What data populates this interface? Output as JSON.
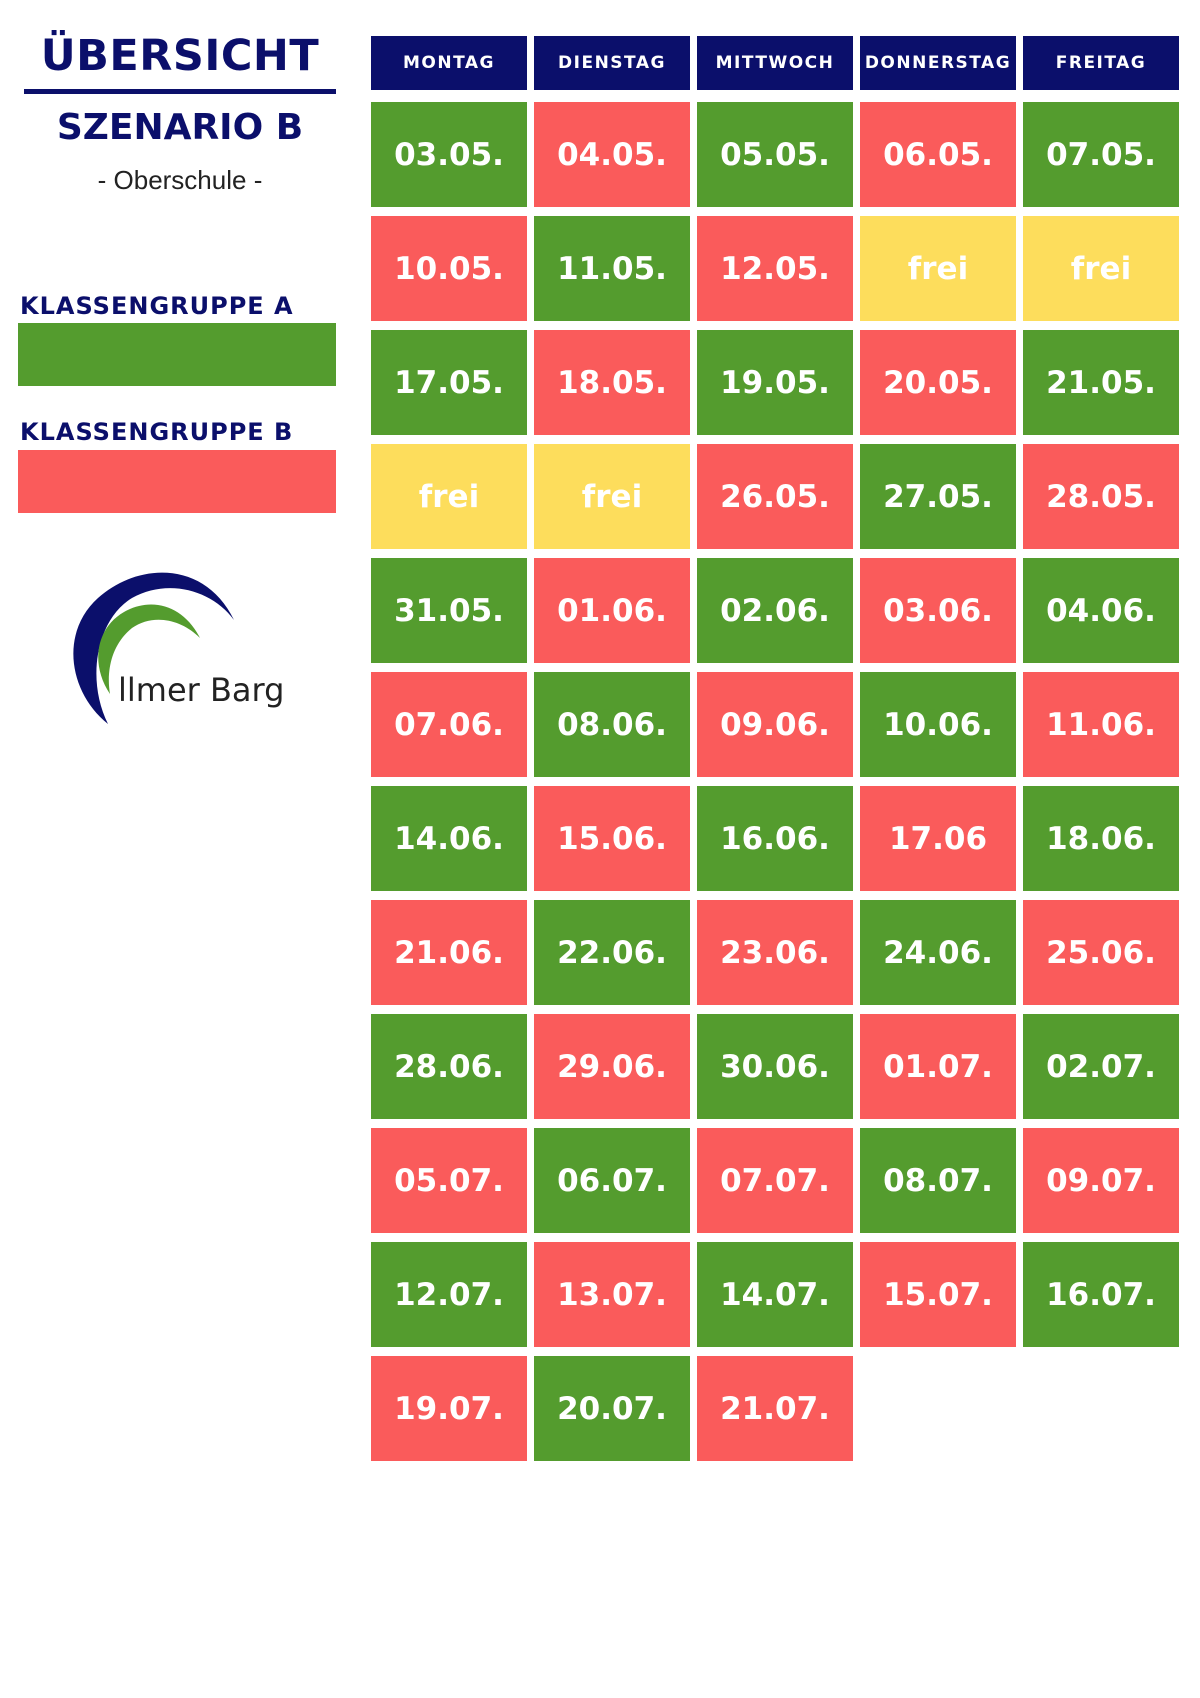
{
  "header": {
    "title": "ÜBERSICHT",
    "subtitle": "SZENARIO B",
    "school_type": "- Oberschule -"
  },
  "legend": [
    {
      "label": "KLASSENGRUPPE A",
      "color": "#549c2e"
    },
    {
      "label": "KLASSENGRUPPE B",
      "color": "#fa5b5b"
    }
  ],
  "logo": {
    "text": "llmer Barg",
    "colors": [
      "#0b0f6b",
      "#549c2e"
    ]
  },
  "colors": {
    "group_a": "#549c2e",
    "group_b": "#fa5b5b",
    "free": "#fddd5c",
    "header": "#0b0f6b"
  },
  "schedule": {
    "days": [
      "MONTAG",
      "DIENSTAG",
      "MITTWOCH",
      "DONNERSTAG",
      "FREITAG"
    ],
    "weeks": [
      [
        {
          "text": "03.05.",
          "group": "A"
        },
        {
          "text": "04.05.",
          "group": "B"
        },
        {
          "text": "05.05.",
          "group": "A"
        },
        {
          "text": "06.05.",
          "group": "B"
        },
        {
          "text": "07.05.",
          "group": "A"
        }
      ],
      [
        {
          "text": "10.05.",
          "group": "B"
        },
        {
          "text": "11.05.",
          "group": "A"
        },
        {
          "text": "12.05.",
          "group": "B"
        },
        {
          "text": "frei",
          "group": "free"
        },
        {
          "text": "frei",
          "group": "free"
        }
      ],
      [
        {
          "text": "17.05.",
          "group": "A"
        },
        {
          "text": "18.05.",
          "group": "B"
        },
        {
          "text": "19.05.",
          "group": "A"
        },
        {
          "text": "20.05.",
          "group": "B"
        },
        {
          "text": "21.05.",
          "group": "A"
        }
      ],
      [
        {
          "text": "frei",
          "group": "free"
        },
        {
          "text": "frei",
          "group": "free"
        },
        {
          "text": "26.05.",
          "group": "B"
        },
        {
          "text": "27.05.",
          "group": "A"
        },
        {
          "text": "28.05.",
          "group": "B"
        }
      ],
      [
        {
          "text": "31.05.",
          "group": "A"
        },
        {
          "text": "01.06.",
          "group": "B"
        },
        {
          "text": "02.06.",
          "group": "A"
        },
        {
          "text": "03.06.",
          "group": "B"
        },
        {
          "text": "04.06.",
          "group": "A"
        }
      ],
      [
        {
          "text": "07.06.",
          "group": "B"
        },
        {
          "text": "08.06.",
          "group": "A"
        },
        {
          "text": "09.06.",
          "group": "B"
        },
        {
          "text": "10.06.",
          "group": "A"
        },
        {
          "text": "11.06.",
          "group": "B"
        }
      ],
      [
        {
          "text": "14.06.",
          "group": "A"
        },
        {
          "text": "15.06.",
          "group": "B"
        },
        {
          "text": "16.06.",
          "group": "A"
        },
        {
          "text": "17.06",
          "group": "B"
        },
        {
          "text": "18.06.",
          "group": "A"
        }
      ],
      [
        {
          "text": "21.06.",
          "group": "B"
        },
        {
          "text": "22.06.",
          "group": "A"
        },
        {
          "text": "23.06.",
          "group": "B"
        },
        {
          "text": "24.06.",
          "group": "A"
        },
        {
          "text": "25.06.",
          "group": "B"
        }
      ],
      [
        {
          "text": "28.06.",
          "group": "A"
        },
        {
          "text": "29.06.",
          "group": "B"
        },
        {
          "text": "30.06.",
          "group": "A"
        },
        {
          "text": "01.07.",
          "group": "B"
        },
        {
          "text": "02.07.",
          "group": "A"
        }
      ],
      [
        {
          "text": "05.07.",
          "group": "B"
        },
        {
          "text": "06.07.",
          "group": "A"
        },
        {
          "text": "07.07.",
          "group": "B"
        },
        {
          "text": "08.07.",
          "group": "A"
        },
        {
          "text": "09.07.",
          "group": "B"
        }
      ],
      [
        {
          "text": "12.07.",
          "group": "A"
        },
        {
          "text": "13.07.",
          "group": "B"
        },
        {
          "text": "14.07.",
          "group": "A"
        },
        {
          "text": "15.07.",
          "group": "B"
        },
        {
          "text": "16.07.",
          "group": "A"
        }
      ],
      [
        {
          "text": "19.07.",
          "group": "B"
        },
        {
          "text": "20.07.",
          "group": "A"
        },
        {
          "text": "21.07.",
          "group": "B"
        }
      ]
    ]
  }
}
